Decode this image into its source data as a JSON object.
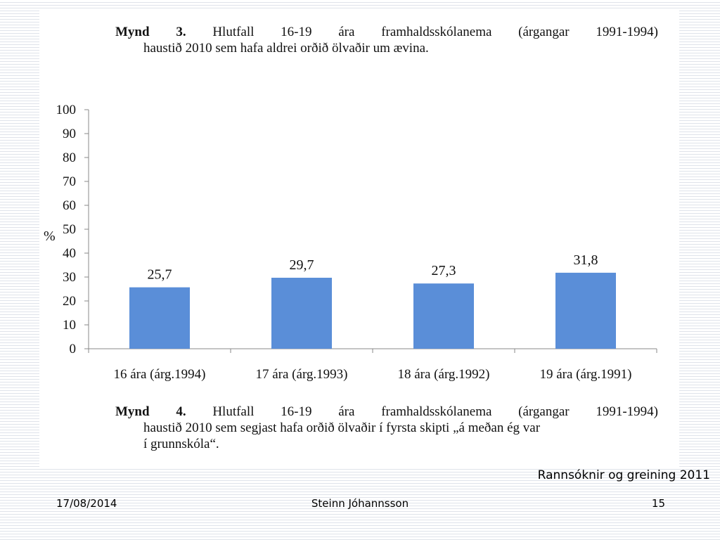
{
  "caption_top": {
    "label": "Mynd 3.",
    "line1": "Hlutfall 16-19 ára framhaldsskólanema (árgangar 1991-1994)",
    "line2": "haustið 2010 sem hafa aldrei orðið ölvaðir um ævina."
  },
  "caption_bottom": {
    "label": "Mynd 4.",
    "line1": "Hlutfall 16-19 ára framhaldsskólanema (árgangar 1991-1994)",
    "line2": "haustið 2010 sem segjast hafa orðið ölvaðir í fyrsta skipti „á meðan ég var",
    "line3": "í grunnskóla“."
  },
  "chart_data": {
    "type": "bar",
    "categories": [
      "16 ára (árg.1994)",
      "17 ára (árg.1993)",
      "18 ára (árg.1992)",
      "19 ára (árg.1991)"
    ],
    "values": [
      25.7,
      29.7,
      27.3,
      31.8
    ],
    "value_labels": [
      "25,7",
      "29,7",
      "27,3",
      "31,8"
    ],
    "ylabel": "%",
    "ylim": [
      0,
      100
    ],
    "yticks": [
      0,
      10,
      20,
      30,
      40,
      50,
      60,
      70,
      80,
      90,
      100
    ],
    "bar_color": "#5a8ed8",
    "grid": false,
    "legend": "none"
  },
  "source": "Rannsóknir og greining 2011",
  "footer": {
    "date": "17/08/2014",
    "author": "Steinn Jóhannsson",
    "page": "15"
  }
}
